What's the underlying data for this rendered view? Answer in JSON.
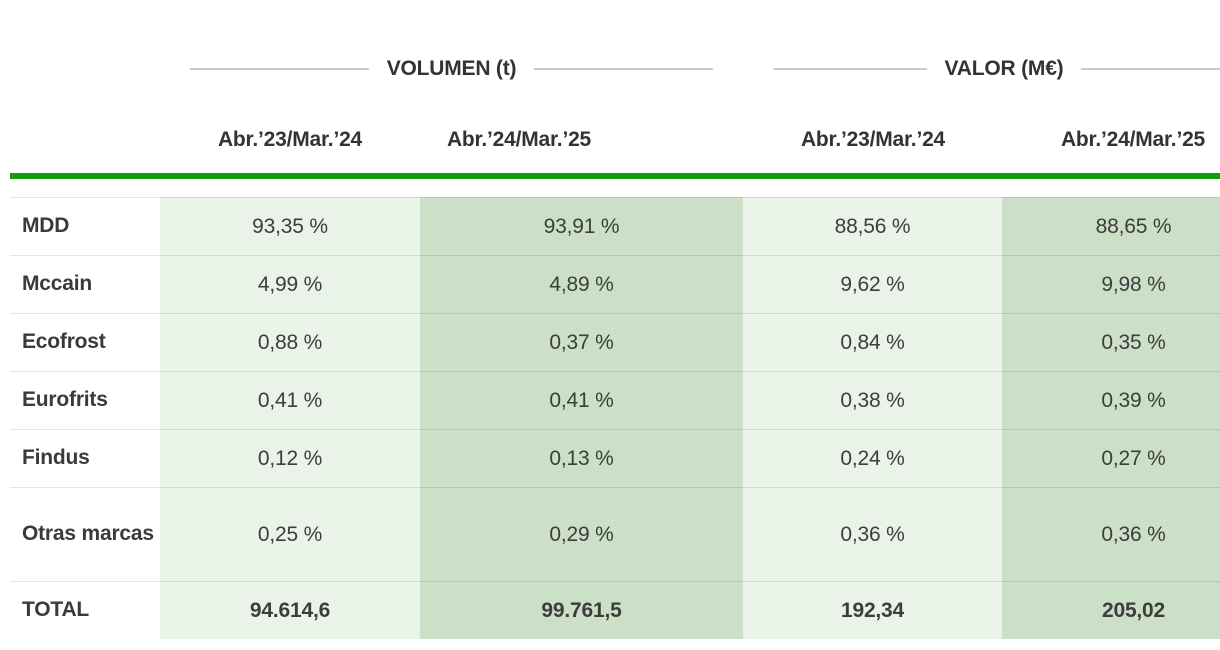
{
  "chart_data": {
    "type": "table",
    "title": "",
    "groups": [
      {
        "label": "VOLUMEN (t)"
      },
      {
        "label": "VALOR (M€)"
      }
    ],
    "columns": [
      "Abr.’23/Mar.’24",
      "Abr.’24/Mar.’25",
      "Abr.’23/Mar.’24",
      "Abr.’24/Mar.’25"
    ],
    "rows": [
      {
        "label": "MDD",
        "values": [
          "93,35 %",
          "93,91 %",
          "88,56 %",
          "88,65 %"
        ]
      },
      {
        "label": "Mccain",
        "values": [
          "4,99 %",
          "4,89 %",
          "9,62 %",
          "9,98 %"
        ]
      },
      {
        "label": "Ecofrost",
        "values": [
          "0,88 %",
          "0,37 %",
          "0,84 %",
          "0,35 %"
        ]
      },
      {
        "label": "Eurofrits",
        "values": [
          "0,41 %",
          "0,41 %",
          "0,38 %",
          "0,39 %"
        ]
      },
      {
        "label": "Findus",
        "values": [
          "0,12 %",
          "0,13 %",
          "0,24 %",
          "0,27 %"
        ]
      },
      {
        "label": "Otras marcas",
        "values": [
          "0,25 %",
          "0,29 %",
          "0,36 %",
          "0,36 %"
        ]
      },
      {
        "label": "TOTAL",
        "values": [
          "94.614,6",
          "99.761,5",
          "192,34",
          "205,02"
        ]
      }
    ],
    "layout_hints": {
      "column_striping": [
        "light",
        "dark",
        "light",
        "dark"
      ],
      "last_column_clipped_at_right_edge": true,
      "total_row_bold": true
    },
    "colors": {
      "accent_green_rule": "#149e0c",
      "cell_light_green": "#e9f3e8",
      "cell_dark_green": "#cbe0c7",
      "header_text": "#333333",
      "body_text": "#3d3d3d",
      "decoration_rule_gray": "#cccccc"
    }
  }
}
